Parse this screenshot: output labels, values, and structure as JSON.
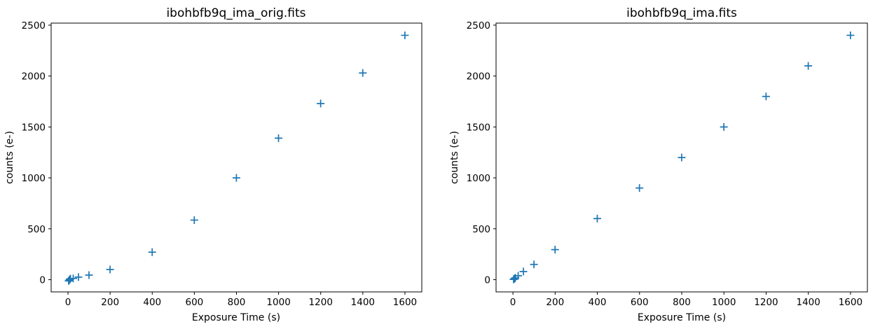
{
  "figure": {
    "background": "#ffffff",
    "frame_color": "#000000",
    "text_color": "#000000"
  },
  "chart_data": [
    {
      "type": "scatter",
      "title": "ibohbfb9q_ima_orig.fits",
      "xlabel": "Exposure Time (s)",
      "ylabel": "counts (e-)",
      "marker": "plus",
      "marker_color": "#1f77b4",
      "grid": false,
      "legend": null,
      "xlim": [
        -80,
        1680
      ],
      "ylim": [
        -120,
        2520
      ],
      "xticks": [
        0,
        200,
        400,
        600,
        800,
        1000,
        1200,
        1400,
        1600
      ],
      "yticks": [
        0,
        500,
        1000,
        1500,
        2000,
        2500
      ],
      "x": [
        2.9,
        5.9,
        8.8,
        11.8,
        24.7,
        49.7,
        99.7,
        199.7,
        399.7,
        599.7,
        799.7,
        999.7,
        1199.7,
        1399.7,
        1599.7
      ],
      "y": [
        -12,
        -4,
        4,
        10,
        12,
        25,
        45,
        100,
        270,
        585,
        1000,
        1390,
        1730,
        2030,
        2400
      ]
    },
    {
      "type": "scatter",
      "title": "ibohbfb9q_ima.fits",
      "xlabel": "Exposure Time (s)",
      "ylabel": "counts (e-)",
      "marker": "plus",
      "marker_color": "#1f77b4",
      "grid": false,
      "legend": null,
      "xlim": [
        -80,
        1680
      ],
      "ylim": [
        -120,
        2520
      ],
      "xticks": [
        0,
        200,
        400,
        600,
        800,
        1000,
        1200,
        1400,
        1600
      ],
      "yticks": [
        0,
        500,
        1000,
        1500,
        2000,
        2500
      ],
      "x": [
        2.9,
        5.9,
        8.8,
        11.8,
        24.7,
        49.7,
        99.7,
        199.7,
        399.7,
        599.7,
        799.7,
        999.7,
        1199.7,
        1399.7,
        1599.7
      ],
      "y": [
        3,
        8,
        13,
        18,
        38,
        80,
        150,
        295,
        600,
        900,
        1200,
        1500,
        1800,
        2100,
        2400
      ]
    }
  ]
}
